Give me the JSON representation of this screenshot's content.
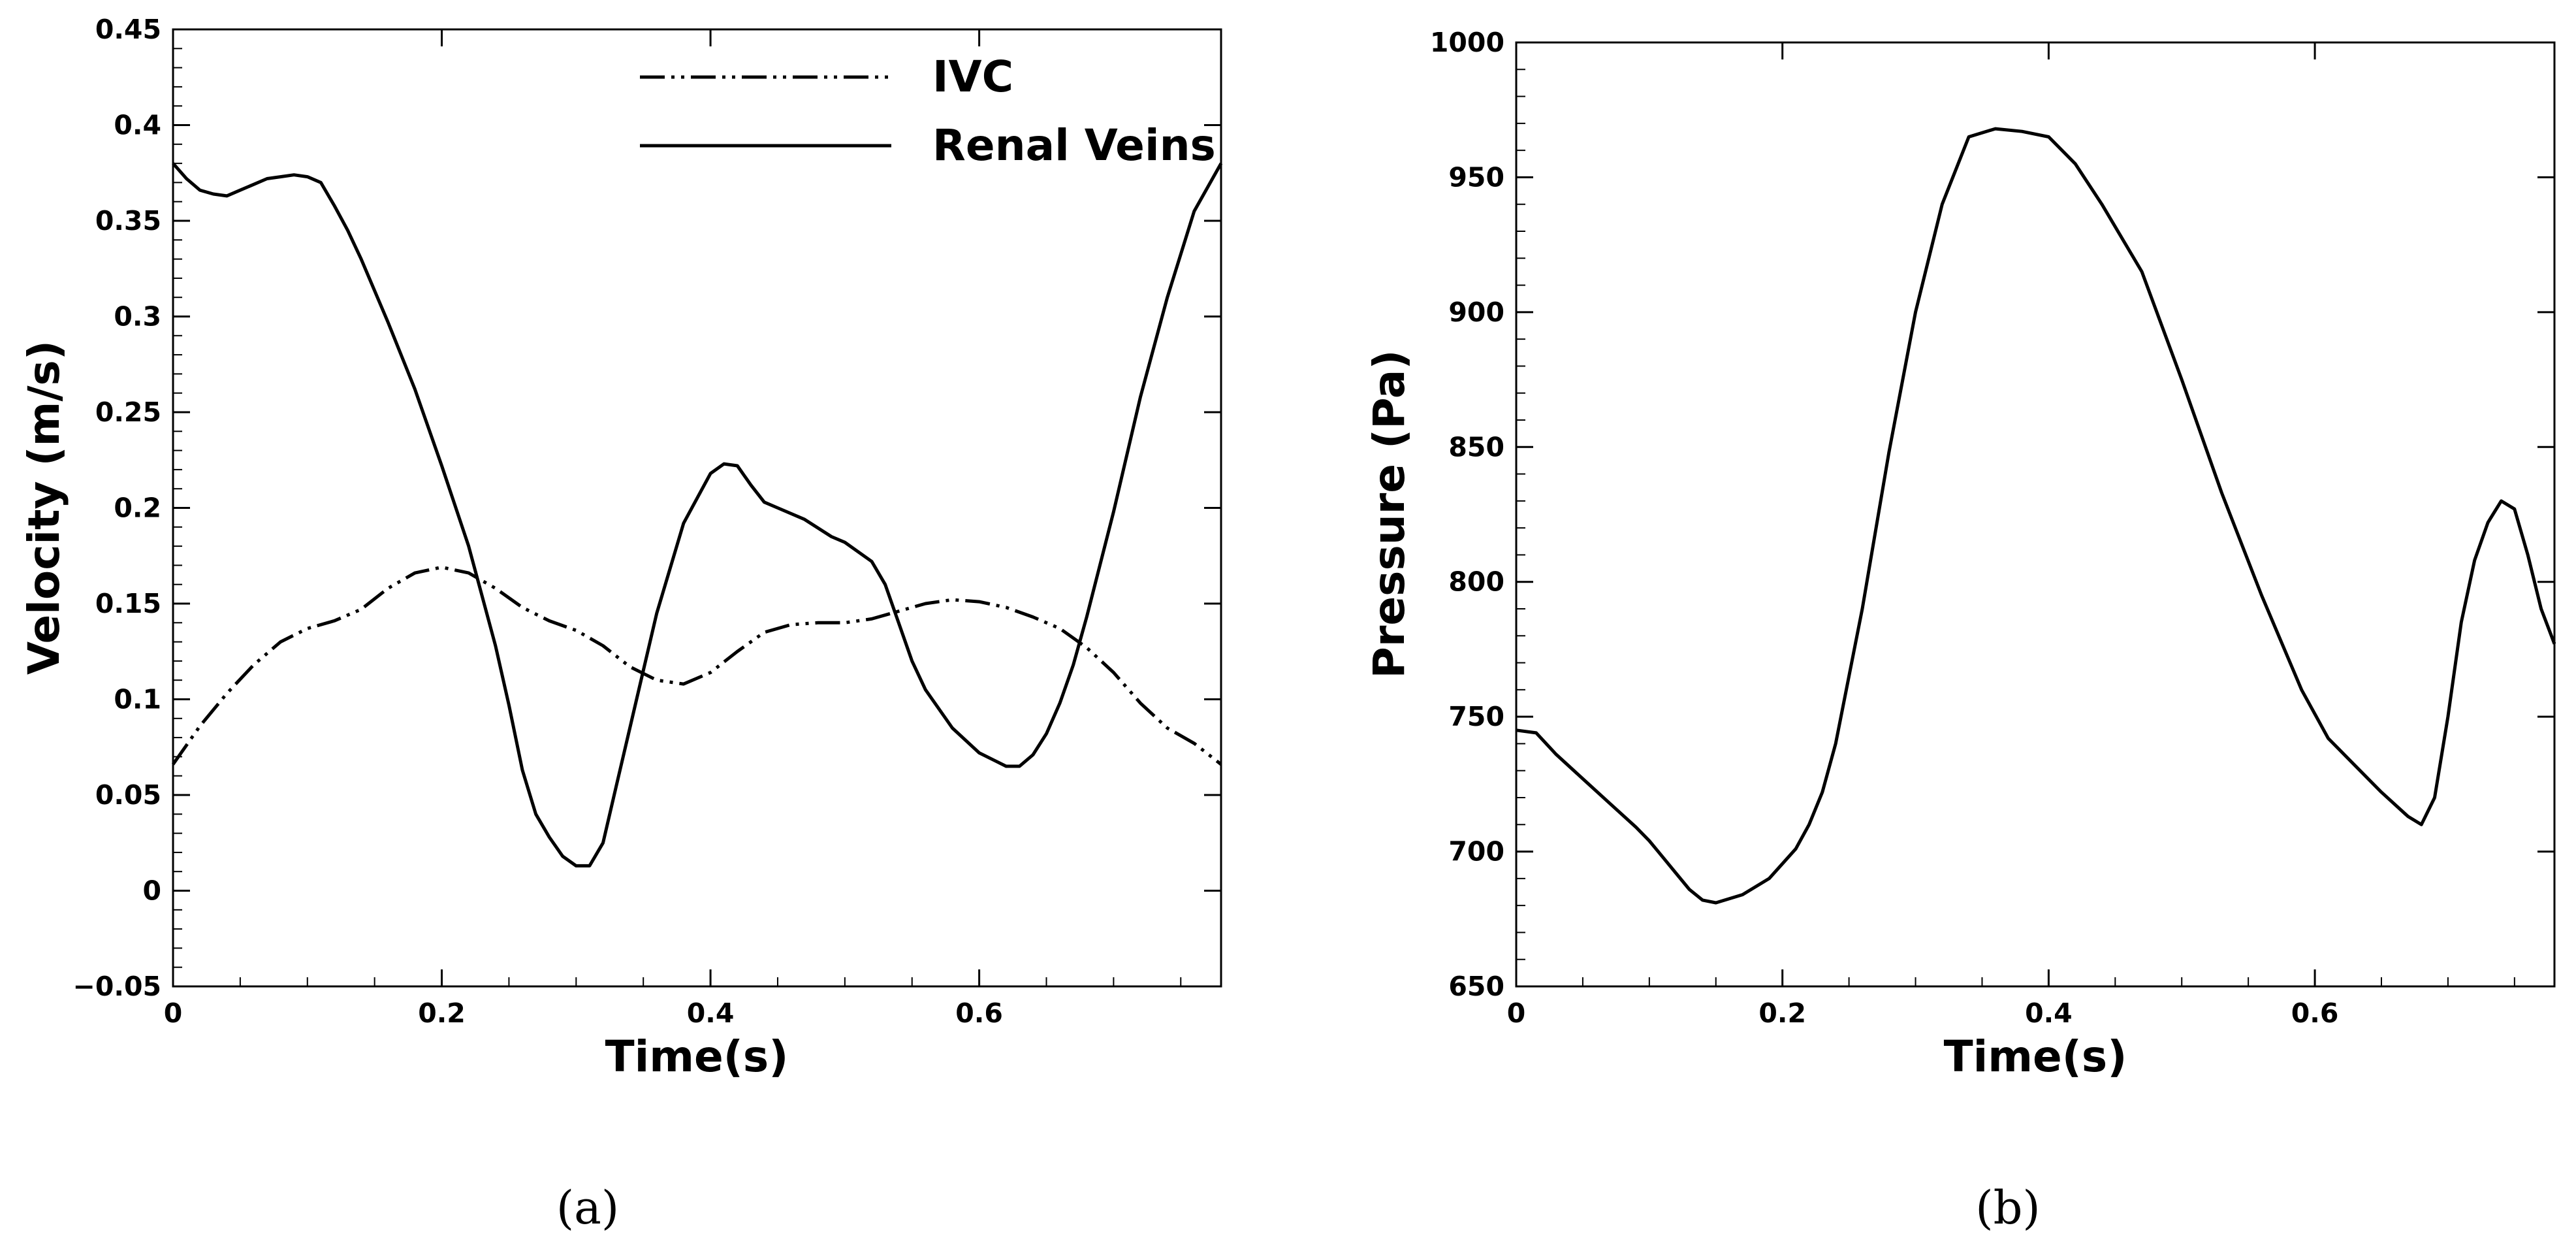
{
  "chart_data": [
    {
      "type": "line",
      "panel_label": "(a)",
      "xlabel": "Time(s)",
      "ylabel": "Velocity (m/s)",
      "xlim": [
        0,
        0.78
      ],
      "ylim": [
        -0.05,
        0.45
      ],
      "xticks": [
        0,
        0.2,
        0.4,
        0.6
      ],
      "xtick_labels": [
        "0",
        "0.2",
        "0.4",
        "0.6"
      ],
      "yticks": [
        -0.05,
        0,
        0.05,
        0.1,
        0.15,
        0.2,
        0.25,
        0.3,
        0.35,
        0.4,
        0.45
      ],
      "ytick_labels": [
        "−0.05",
        "0",
        "0.05",
        "0.1",
        "0.15",
        "0.2",
        "0.25",
        "0.3",
        "0.35",
        "0.4",
        "0.45"
      ],
      "grid": false,
      "legend_position": "top-right",
      "series": [
        {
          "name": "IVC",
          "style": "dash-dot-dot",
          "x": [
            0,
            0.02,
            0.04,
            0.06,
            0.08,
            0.1,
            0.12,
            0.14,
            0.16,
            0.18,
            0.2,
            0.22,
            0.24,
            0.26,
            0.28,
            0.3,
            0.32,
            0.34,
            0.36,
            0.38,
            0.4,
            0.42,
            0.44,
            0.46,
            0.48,
            0.5,
            0.52,
            0.54,
            0.56,
            0.58,
            0.6,
            0.62,
            0.64,
            0.66,
            0.68,
            0.7,
            0.72,
            0.74,
            0.76,
            0.78
          ],
          "y": [
            0.066,
            0.086,
            0.103,
            0.118,
            0.13,
            0.137,
            0.141,
            0.147,
            0.158,
            0.166,
            0.169,
            0.166,
            0.158,
            0.148,
            0.141,
            0.136,
            0.128,
            0.117,
            0.11,
            0.108,
            0.114,
            0.125,
            0.135,
            0.139,
            0.14,
            0.14,
            0.142,
            0.146,
            0.15,
            0.152,
            0.151,
            0.148,
            0.143,
            0.137,
            0.127,
            0.114,
            0.098,
            0.085,
            0.077,
            0.066
          ]
        },
        {
          "name": "Renal Veins",
          "style": "solid",
          "x": [
            0,
            0.01,
            0.02,
            0.03,
            0.04,
            0.05,
            0.06,
            0.07,
            0.08,
            0.09,
            0.1,
            0.11,
            0.12,
            0.13,
            0.14,
            0.16,
            0.18,
            0.2,
            0.22,
            0.24,
            0.25,
            0.26,
            0.27,
            0.28,
            0.29,
            0.3,
            0.31,
            0.32,
            0.33,
            0.34,
            0.35,
            0.36,
            0.38,
            0.4,
            0.41,
            0.42,
            0.43,
            0.44,
            0.45,
            0.47,
            0.49,
            0.5,
            0.52,
            0.53,
            0.54,
            0.55,
            0.56,
            0.58,
            0.6,
            0.62,
            0.63,
            0.64,
            0.65,
            0.66,
            0.67,
            0.68,
            0.7,
            0.72,
            0.74,
            0.76,
            0.78
          ],
          "y": [
            0.38,
            0.372,
            0.366,
            0.364,
            0.363,
            0.366,
            0.369,
            0.372,
            0.373,
            0.374,
            0.373,
            0.37,
            0.358,
            0.345,
            0.33,
            0.297,
            0.262,
            0.222,
            0.18,
            0.128,
            0.097,
            0.063,
            0.04,
            0.028,
            0.018,
            0.013,
            0.013,
            0.025,
            0.055,
            0.085,
            0.115,
            0.145,
            0.192,
            0.218,
            0.223,
            0.222,
            0.212,
            0.203,
            0.2,
            0.194,
            0.185,
            0.182,
            0.172,
            0.16,
            0.14,
            0.12,
            0.105,
            0.085,
            0.072,
            0.065,
            0.065,
            0.071,
            0.082,
            0.098,
            0.118,
            0.143,
            0.198,
            0.258,
            0.31,
            0.355,
            0.38
          ]
        }
      ]
    },
    {
      "type": "line",
      "panel_label": "(b)",
      "xlabel": "Time(s)",
      "ylabel": "Pressure (Pa)",
      "xlim": [
        0,
        0.78
      ],
      "ylim": [
        650,
        1000
      ],
      "xticks": [
        0,
        0.2,
        0.4,
        0.6
      ],
      "xtick_labels": [
        "0",
        "0.2",
        "0.4",
        "0.6"
      ],
      "yticks": [
        650,
        700,
        750,
        800,
        850,
        900,
        950,
        1000
      ],
      "ytick_labels": [
        "650",
        "700",
        "750",
        "800",
        "850",
        "900",
        "950",
        "1000"
      ],
      "grid": false,
      "series": [
        {
          "name": "Pressure",
          "style": "solid",
          "x": [
            0,
            0.015,
            0.03,
            0.05,
            0.07,
            0.09,
            0.1,
            0.11,
            0.12,
            0.13,
            0.14,
            0.15,
            0.17,
            0.19,
            0.21,
            0.22,
            0.23,
            0.24,
            0.26,
            0.28,
            0.3,
            0.32,
            0.34,
            0.36,
            0.38,
            0.4,
            0.42,
            0.44,
            0.47,
            0.5,
            0.53,
            0.56,
            0.59,
            0.61,
            0.63,
            0.65,
            0.67,
            0.68,
            0.69,
            0.7,
            0.71,
            0.72,
            0.73,
            0.74,
            0.75,
            0.76,
            0.77,
            0.78
          ],
          "y": [
            745,
            744,
            736,
            727,
            718,
            709,
            704,
            698,
            692,
            686,
            682,
            681,
            684,
            690,
            701,
            710,
            722,
            740,
            790,
            848,
            900,
            940,
            965,
            968,
            967,
            965,
            955,
            940,
            915,
            875,
            833,
            795,
            760,
            742,
            732,
            722,
            713,
            710,
            720,
            750,
            785,
            808,
            822,
            830,
            827,
            810,
            790,
            777
          ]
        }
      ]
    }
  ]
}
